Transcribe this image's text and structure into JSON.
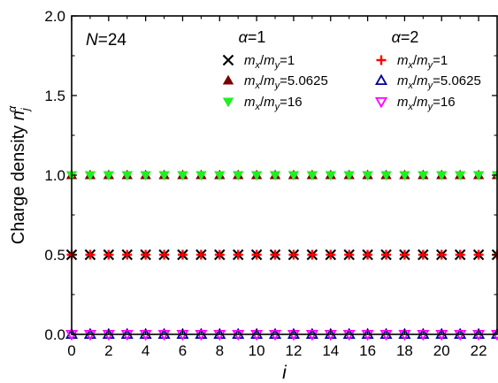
{
  "chart_data": {
    "type": "scatter",
    "annotation": {
      "italic": "N",
      "rest": "=24"
    },
    "xlabel": "i",
    "ylabel": "Charge density ",
    "ylabel_sym": {
      "base": "n",
      "sub": "j",
      "sup": "α"
    },
    "xlim": [
      0,
      23
    ],
    "ylim": [
      0,
      2.0
    ],
    "x_ticks": [
      "0",
      "2",
      "4",
      "6",
      "8",
      "10",
      "12",
      "14",
      "16",
      "18",
      "20",
      "22"
    ],
    "y_ticks": [
      "0.0",
      "0.5",
      "1.0",
      "1.5",
      "2.0"
    ],
    "x": [
      0,
      1,
      2,
      3,
      4,
      5,
      6,
      7,
      8,
      9,
      10,
      11,
      12,
      13,
      14,
      15,
      16,
      17,
      18,
      19,
      20,
      21,
      22,
      23
    ],
    "groups": [
      {
        "header_sym": "α",
        "header_rest": "=1"
      },
      {
        "header_sym": "α",
        "header_rest": "=2"
      }
    ],
    "series": [
      {
        "group": 0,
        "name": "mx/my=1",
        "ratio": "1",
        "marker": "x",
        "color": "#000000",
        "value": 0.5
      },
      {
        "group": 0,
        "name": "mx/my=5.0625",
        "ratio": "5.0625",
        "marker": "triangle-up",
        "color": "#7a0000",
        "value": 1.0
      },
      {
        "group": 0,
        "name": "mx/my=16",
        "ratio": "16",
        "marker": "triangle-down",
        "color": "#22ee22",
        "value": 1.0
      },
      {
        "group": 1,
        "name": "mx/my=1",
        "ratio": "1",
        "marker": "plus",
        "color": "#ff0000",
        "value": 0.5
      },
      {
        "group": 1,
        "name": "mx/my=5.0625",
        "ratio": "5.0625",
        "marker": "triangle-up-open",
        "color": "#000099",
        "value": 0.0
      },
      {
        "group": 1,
        "name": "mx/my=16",
        "ratio": "16",
        "marker": "triangle-down-open",
        "color": "#ff00ff",
        "value": 0.0
      }
    ]
  }
}
